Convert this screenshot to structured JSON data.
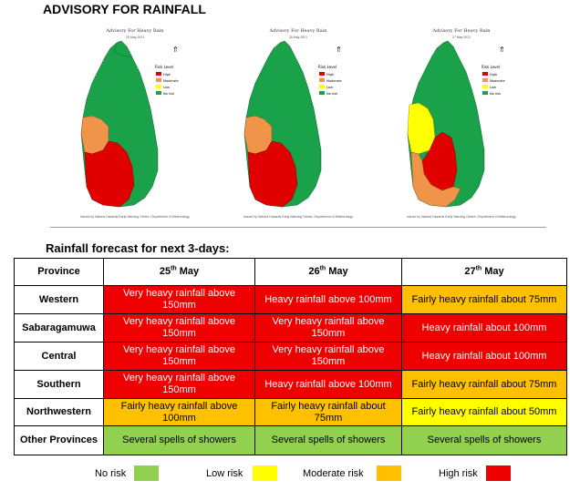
{
  "header": {
    "title": "ADVISORY FOR RAINFALL"
  },
  "maps": [
    {
      "heading": "Advisory For Heavy Rain",
      "date": "25 May 2021",
      "footer": "Issued by Natural Hazards Early Warning Centre, Department of Meteorology",
      "legend_title": "Risk Level",
      "legend": [
        "High",
        "Moderate",
        "Low",
        "No risk"
      ]
    },
    {
      "heading": "Advisory For Heavy Rain",
      "date": "26 May 2021",
      "footer": "Issued by Natural Hazards Early Warning Centre, Department of Meteorology",
      "legend_title": "Risk Level",
      "legend": [
        "High",
        "Moderate",
        "Low",
        "No risk"
      ]
    },
    {
      "heading": "Advisory For Heavy Rain",
      "date": "27 May 2021",
      "footer": "Issued by Natural Hazards Early Warning Centre, Department of Meteorology",
      "legend_title": "Risk Level",
      "legend": [
        "High",
        "Moderate",
        "Low",
        "No risk"
      ]
    }
  ],
  "forecast": {
    "subtitle": "Rainfall forecast for next 3-days:",
    "header": {
      "province": "Province",
      "day1": {
        "num": "25",
        "sup": "th",
        "month": " May"
      },
      "day2": {
        "num": "26",
        "sup": "th",
        "month": " May"
      },
      "day3": {
        "num": "27",
        "sup": "th",
        "month": " May"
      }
    },
    "rows": [
      {
        "province": "Western",
        "d1": "Very heavy rainfall above 150mm",
        "d2": "Heavy rainfall above 100mm",
        "d3": "Fairly heavy rainfall about 75mm",
        "risk": [
          "high",
          "high",
          "moderate"
        ]
      },
      {
        "province": "Sabaragamuwa",
        "d1": "Very heavy rainfall above 150mm",
        "d2": "Very heavy rainfall above 150mm",
        "d3": "Heavy rainfall about 100mm",
        "risk": [
          "high",
          "high",
          "high"
        ]
      },
      {
        "province": "Central",
        "d1": "Very heavy rainfall above 150mm",
        "d2": "Very heavy rainfall above 150mm",
        "d3": "Heavy rainfall about 100mm",
        "risk": [
          "high",
          "high",
          "high"
        ]
      },
      {
        "province": "Southern",
        "d1": "Very heavy rainfall above 150mm",
        "d2": "Heavy rainfall above 100mm",
        "d3": "Fairly heavy rainfall about 75mm",
        "risk": [
          "high",
          "high",
          "moderate"
        ]
      },
      {
        "province": "Northwestern",
        "d1": "Fairly heavy rainfall above 100mm",
        "d2": "Fairly heavy rainfall about 75mm",
        "d3": "Fairly heavy rainfall about 50mm",
        "risk": [
          "moderate",
          "moderate",
          "low"
        ]
      },
      {
        "province": "Other Provinces",
        "d1": "Several spells of showers",
        "d2": "Several spells of showers",
        "d3": "Several spells of showers",
        "risk": [
          "none",
          "none",
          "none"
        ]
      }
    ]
  },
  "legend": {
    "no_risk": "No risk",
    "low_risk": "Low risk",
    "moderate_risk": "Moderate risk",
    "high_risk": "High risk"
  },
  "colors": {
    "high": "#ee0000",
    "moderate": "#ffc000",
    "low": "#ffff00",
    "none": "#92d050",
    "map_green": "#1aa24a"
  }
}
